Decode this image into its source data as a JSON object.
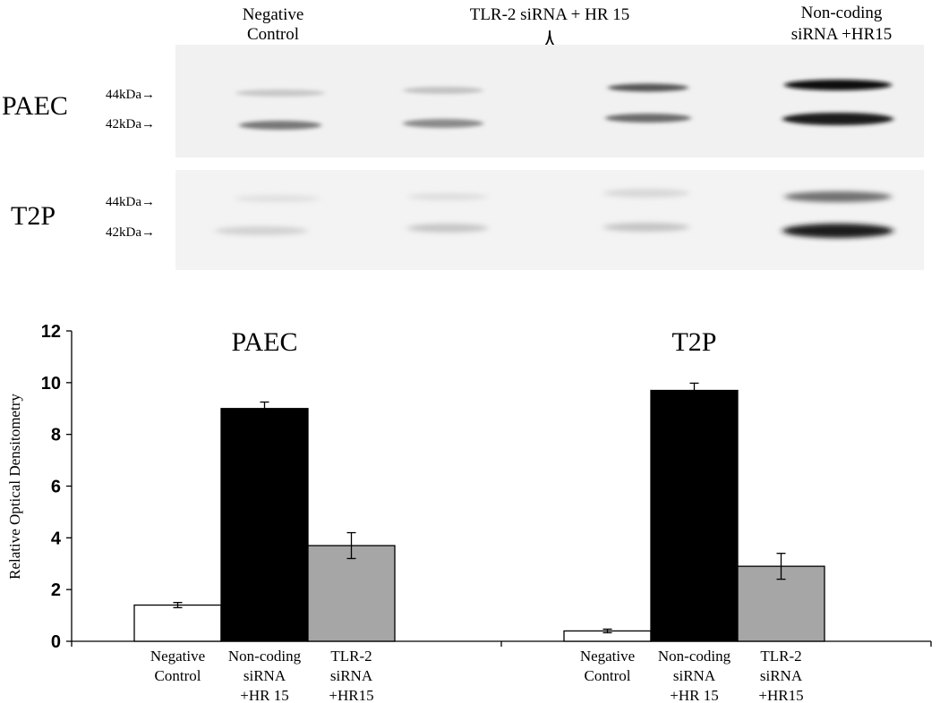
{
  "blot": {
    "col_labels": {
      "negative": [
        "Negative",
        "Control"
      ],
      "tlr": "TLR-2 siRNA + HR 15",
      "noncoding": [
        "Non-coding",
        "siRNA +HR15"
      ]
    },
    "panels": [
      {
        "name": "PAEC",
        "markers": [
          "44kDa→",
          "42kDa→"
        ]
      },
      {
        "name": "T2P",
        "markers": [
          "44kDa→",
          "42kDa→"
        ]
      }
    ]
  },
  "chart_data": {
    "type": "bar",
    "ylabel": "Relative Optical Densitometry",
    "ylim": [
      0,
      12
    ],
    "yticks": [
      0,
      2,
      4,
      6,
      8,
      10,
      12
    ],
    "grid": false,
    "groups": [
      {
        "title": "PAEC",
        "categories": [
          [
            "Negative",
            "Control"
          ],
          [
            "Non-coding",
            "siRNA",
            "+HR 15"
          ],
          [
            "TLR-2",
            "siRNA",
            "+HR15"
          ]
        ],
        "values": [
          1.4,
          9.0,
          3.7
        ],
        "errors": [
          0.1,
          0.25,
          0.5
        ]
      },
      {
        "title": "T2P",
        "categories": [
          [
            "Negative",
            "Control"
          ],
          [
            "Non-coding",
            "siRNA",
            "+HR 15"
          ],
          [
            "TLR-2",
            "siRNA",
            "+HR15"
          ]
        ],
        "values": [
          0.4,
          9.7,
          2.9
        ],
        "errors": [
          0.07,
          0.28,
          0.5
        ]
      }
    ],
    "bar_colors": [
      "#ffffff",
      "#000000",
      "#a6a6a6"
    ]
  }
}
